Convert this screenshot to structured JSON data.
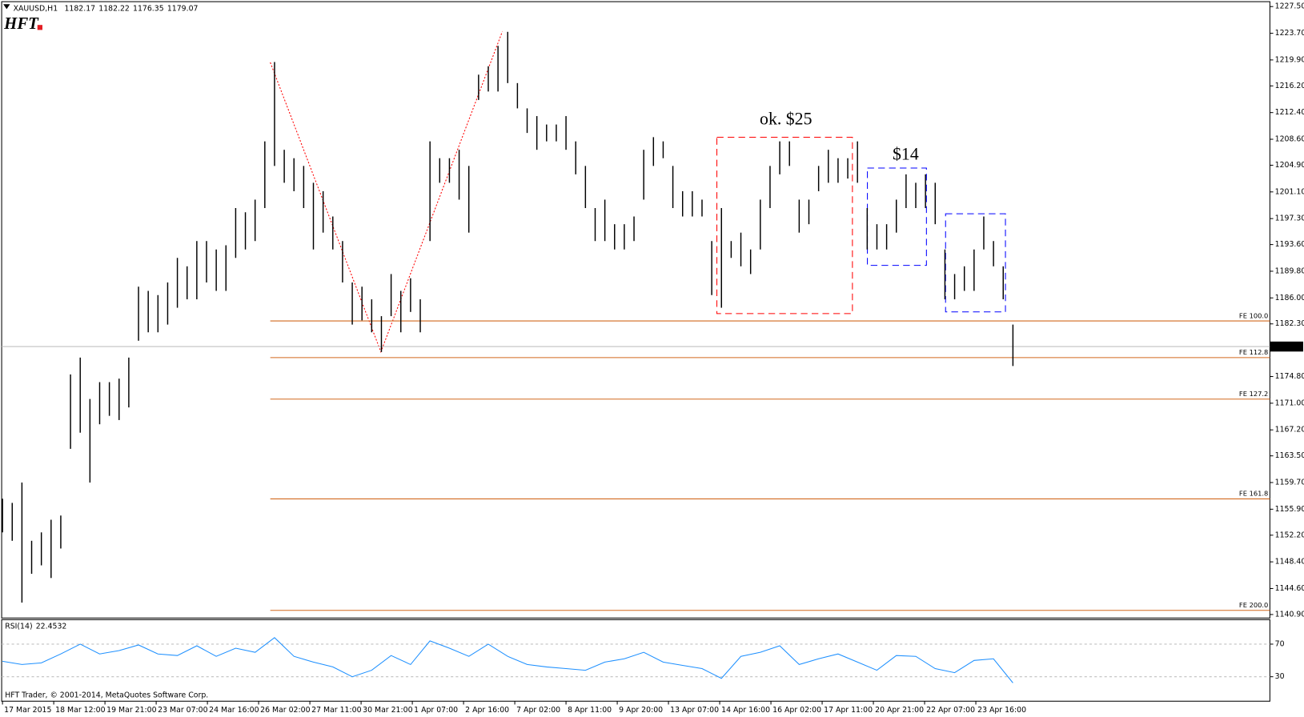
{
  "header": {
    "symbol": "XAUUSD,H1",
    "quote": [
      1182.17,
      1182.22,
      1176.35,
      1179.07
    ],
    "logo": "HFT",
    "copyright": "HFT Trader, © 2001-2014, MetaQuotes Software Corp."
  },
  "chart_data": [
    {
      "type": "ohlc",
      "color": "#000000",
      "categories": [
        "17 Mar 2015",
        "18 Mar 12:00",
        "19 Mar 21:00",
        "23 Mar 07:00",
        "24 Mar 16:00",
        "26 Mar 02:00",
        "27 Mar 11:00",
        "30 Mar 21:00",
        "1 Apr 07:00",
        "2 Apr 16:00",
        "7 Apr 02:00",
        "8 Apr 11:00",
        "9 Apr 20:00",
        "13 Apr 07:00",
        "14 Apr 16:00",
        "16 Apr 02:00",
        "17 Apr 11:00",
        "20 Apr 21:00",
        "22 Apr 07:00",
        "23 Apr 16:00"
      ],
      "high": [
        1157.4,
        1156.8,
        1159.7,
        1151.4,
        1152.6,
        1154.4,
        1155.0,
        1175.1,
        1177.5,
        1171.6,
        1174.0,
        1174.0,
        1174.5,
        1177.5,
        1187.6,
        1187.0,
        1186.4,
        1188.2,
        1191.7,
        1190.5,
        1194.1,
        1194.1,
        1192.9,
        1193.5,
        1198.8,
        1198.2,
        1200.0,
        1208.3,
        1219.6,
        1207.1,
        1205.9,
        1204.8,
        1202.4,
        1201.2,
        1197.6,
        1194.1,
        1188.2,
        1187.6,
        1185.8,
        1183.4,
        1189.4,
        1187.0,
        1188.8,
        1185.8,
        1208.3,
        1205.9,
        1205.9,
        1207.1,
        1204.8,
        1217.8,
        1219.0,
        1221.9,
        1223.9,
        1216.6,
        1213.0,
        1211.9,
        1210.7,
        1210.7,
        1211.9,
        1208.3,
        1204.8,
        1198.8,
        1200.0,
        1196.5,
        1196.5,
        1197.6,
        1207.1,
        1208.9,
        1208.3,
        1204.8,
        1201.2,
        1201.2,
        1200.0,
        1194.1,
        1198.8,
        1194.1,
        1195.3,
        1192.9,
        1200.0,
        1204.8,
        1208.3,
        1208.3,
        1200.0,
        1200.0,
        1204.8,
        1207.1,
        1205.9,
        1205.9,
        1208.3,
        1198.8,
        1196.5,
        1196.5,
        1200.0,
        1203.6,
        1202.4,
        1203.6,
        1202.4,
        1192.9,
        1189.4,
        1190.5,
        1192.9,
        1197.6,
        1194.1,
        1190.5,
        1182.2
      ],
      "low": [
        1152.6,
        1151.4,
        1142.6,
        1146.7,
        1147.9,
        1146.1,
        1150.3,
        1164.5,
        1166.8,
        1159.7,
        1168.0,
        1169.2,
        1168.6,
        1170.4,
        1179.9,
        1181.1,
        1181.1,
        1182.2,
        1184.6,
        1185.8,
        1185.8,
        1188.2,
        1187.0,
        1187.0,
        1191.7,
        1192.9,
        1194.1,
        1198.8,
        1204.8,
        1202.4,
        1201.2,
        1198.8,
        1192.9,
        1195.3,
        1192.9,
        1188.2,
        1182.2,
        1182.8,
        1181.1,
        1178.3,
        1183.4,
        1181.1,
        1184.0,
        1181.1,
        1194.1,
        1202.4,
        1202.4,
        1200.0,
        1195.3,
        1214.2,
        1215.4,
        1215.4,
        1216.6,
        1213.0,
        1209.5,
        1207.1,
        1208.3,
        1208.3,
        1207.1,
        1203.6,
        1198.8,
        1194.1,
        1194.1,
        1192.9,
        1192.9,
        1194.1,
        1200.0,
        1204.8,
        1205.9,
        1198.8,
        1197.6,
        1197.6,
        1197.6,
        1186.4,
        1184.6,
        1191.7,
        1190.5,
        1189.4,
        1192.9,
        1198.8,
        1203.6,
        1204.8,
        1195.3,
        1196.5,
        1201.2,
        1202.4,
        1202.4,
        1203.0,
        1202.4,
        1192.9,
        1192.9,
        1192.9,
        1195.3,
        1198.8,
        1198.8,
        1198.8,
        1196.5,
        1185.8,
        1185.8,
        1187.0,
        1187.0,
        1192.9,
        1190.5,
        1185.8,
        1176.3
      ],
      "ylim": [
        1140.4,
        1228.2
      ],
      "yticks": [
        {
          "value": 1227.5,
          "label": "1227.50"
        },
        {
          "value": 1223.7,
          "label": "1223.70"
        },
        {
          "value": 1219.9,
          "label": "1219.90"
        },
        {
          "value": 1216.2,
          "label": "1216.20"
        },
        {
          "value": 1212.4,
          "label": "1212.40"
        },
        {
          "value": 1208.6,
          "label": "1208.60"
        },
        {
          "value": 1204.9,
          "label": "1204.90"
        },
        {
          "value": 1201.1,
          "label": "1201.10"
        },
        {
          "value": 1197.3,
          "label": "1197.30"
        },
        {
          "value": 1193.6,
          "label": "1193.60"
        },
        {
          "value": 1189.8,
          "label": "1189.80"
        },
        {
          "value": 1186.0,
          "label": "1186.00"
        },
        {
          "value": 1182.3,
          "label": "1182.30"
        },
        {
          "value": 1174.8,
          "label": "1174.80"
        },
        {
          "value": 1171.0,
          "label": "1171.00"
        },
        {
          "value": 1167.2,
          "label": "1167.20"
        },
        {
          "value": 1163.5,
          "label": "1163.50"
        },
        {
          "value": 1159.7,
          "label": "1159.70"
        },
        {
          "value": 1155.9,
          "label": "1155.90"
        },
        {
          "value": 1152.2,
          "label": "1152.20"
        },
        {
          "value": 1148.4,
          "label": "1148.40"
        },
        {
          "value": 1144.6,
          "label": "1144.60"
        },
        {
          "value": 1140.9,
          "label": "1140.90"
        }
      ],
      "current_price": 1179.07,
      "levels": [
        {
          "name": "FE 100.0",
          "value": 1182.72
        },
        {
          "name": "FE 112.8",
          "value": 1177.5
        },
        {
          "name": "FE 127.2",
          "value": 1171.58
        },
        {
          "name": "FE 161.8",
          "value": 1157.37
        },
        {
          "name": "FE 200.0",
          "value": 1141.49
        }
      ],
      "level_color": "#d2691e",
      "annotations": [
        {
          "text": "ok. $25",
          "color": "#ff0000"
        },
        {
          "text": "$14",
          "color": "#0000ff"
        }
      ]
    },
    {
      "type": "line",
      "title": "RSI(14)",
      "last_value": 22.4532,
      "color": "#1e90ff",
      "values": [
        49,
        45,
        47,
        58,
        70,
        58,
        62,
        69,
        58,
        56,
        68,
        55,
        65,
        60,
        78,
        55,
        48,
        42,
        30,
        38,
        56,
        45,
        74,
        65,
        55,
        70,
        55,
        45,
        42,
        40,
        38,
        48,
        52,
        60,
        48,
        44,
        40,
        28,
        55,
        60,
        68,
        45,
        52,
        58,
        48,
        38,
        56,
        55,
        40,
        35,
        50,
        52,
        22.45
      ],
      "ylim": [
        0,
        100
      ],
      "yticks": [
        30,
        70
      ]
    }
  ]
}
